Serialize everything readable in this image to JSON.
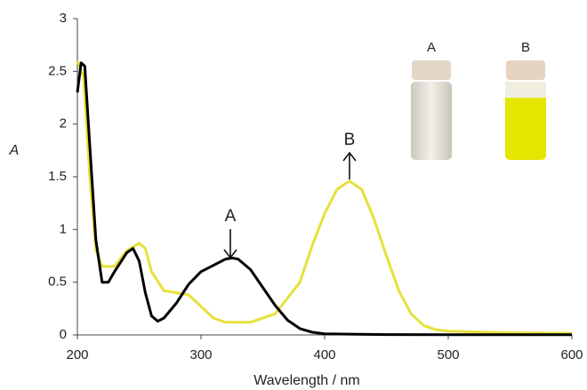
{
  "chart_data": {
    "type": "line",
    "xlabel": "Wavelength / nm",
    "ylabel": "A",
    "annotations": [
      "A",
      "B"
    ],
    "vial_labels": [
      "A",
      "B"
    ],
    "xlim": [
      200,
      600
    ],
    "xticks": [
      200,
      300,
      400,
      500,
      600
    ],
    "ylim": [
      0,
      3
    ],
    "yticks": [
      0,
      0.5,
      1,
      1.5,
      2,
      2.5,
      3
    ],
    "grid": false,
    "series": [
      {
        "name": "A",
        "color": "#000000",
        "x": [
          200,
          203,
          206,
          210,
          215,
          220,
          225,
          230,
          240,
          245,
          250,
          255,
          260,
          265,
          270,
          280,
          290,
          300,
          310,
          320,
          325,
          330,
          340,
          350,
          360,
          370,
          380,
          390,
          400,
          450,
          500,
          600
        ],
        "values": [
          2.3,
          2.58,
          2.55,
          1.8,
          0.9,
          0.5,
          0.5,
          0.6,
          0.78,
          0.82,
          0.7,
          0.4,
          0.18,
          0.13,
          0.16,
          0.3,
          0.48,
          0.6,
          0.66,
          0.72,
          0.73,
          0.72,
          0.62,
          0.45,
          0.28,
          0.14,
          0.06,
          0.025,
          0.01,
          0.003,
          0.002,
          0.002
        ]
      },
      {
        "name": "B",
        "color": "#e8e03a",
        "x": [
          200,
          205,
          210,
          215,
          220,
          230,
          240,
          250,
          255,
          260,
          270,
          280,
          290,
          300,
          310,
          320,
          340,
          360,
          380,
          390,
          400,
          410,
          420,
          430,
          440,
          450,
          460,
          470,
          480,
          490,
          500,
          550,
          600
        ],
        "values": [
          2.6,
          2.45,
          1.5,
          0.8,
          0.65,
          0.65,
          0.8,
          0.87,
          0.82,
          0.6,
          0.42,
          0.4,
          0.38,
          0.27,
          0.16,
          0.12,
          0.12,
          0.2,
          0.5,
          0.85,
          1.15,
          1.38,
          1.46,
          1.38,
          1.1,
          0.75,
          0.42,
          0.2,
          0.09,
          0.05,
          0.035,
          0.02,
          0.015
        ]
      }
    ]
  }
}
